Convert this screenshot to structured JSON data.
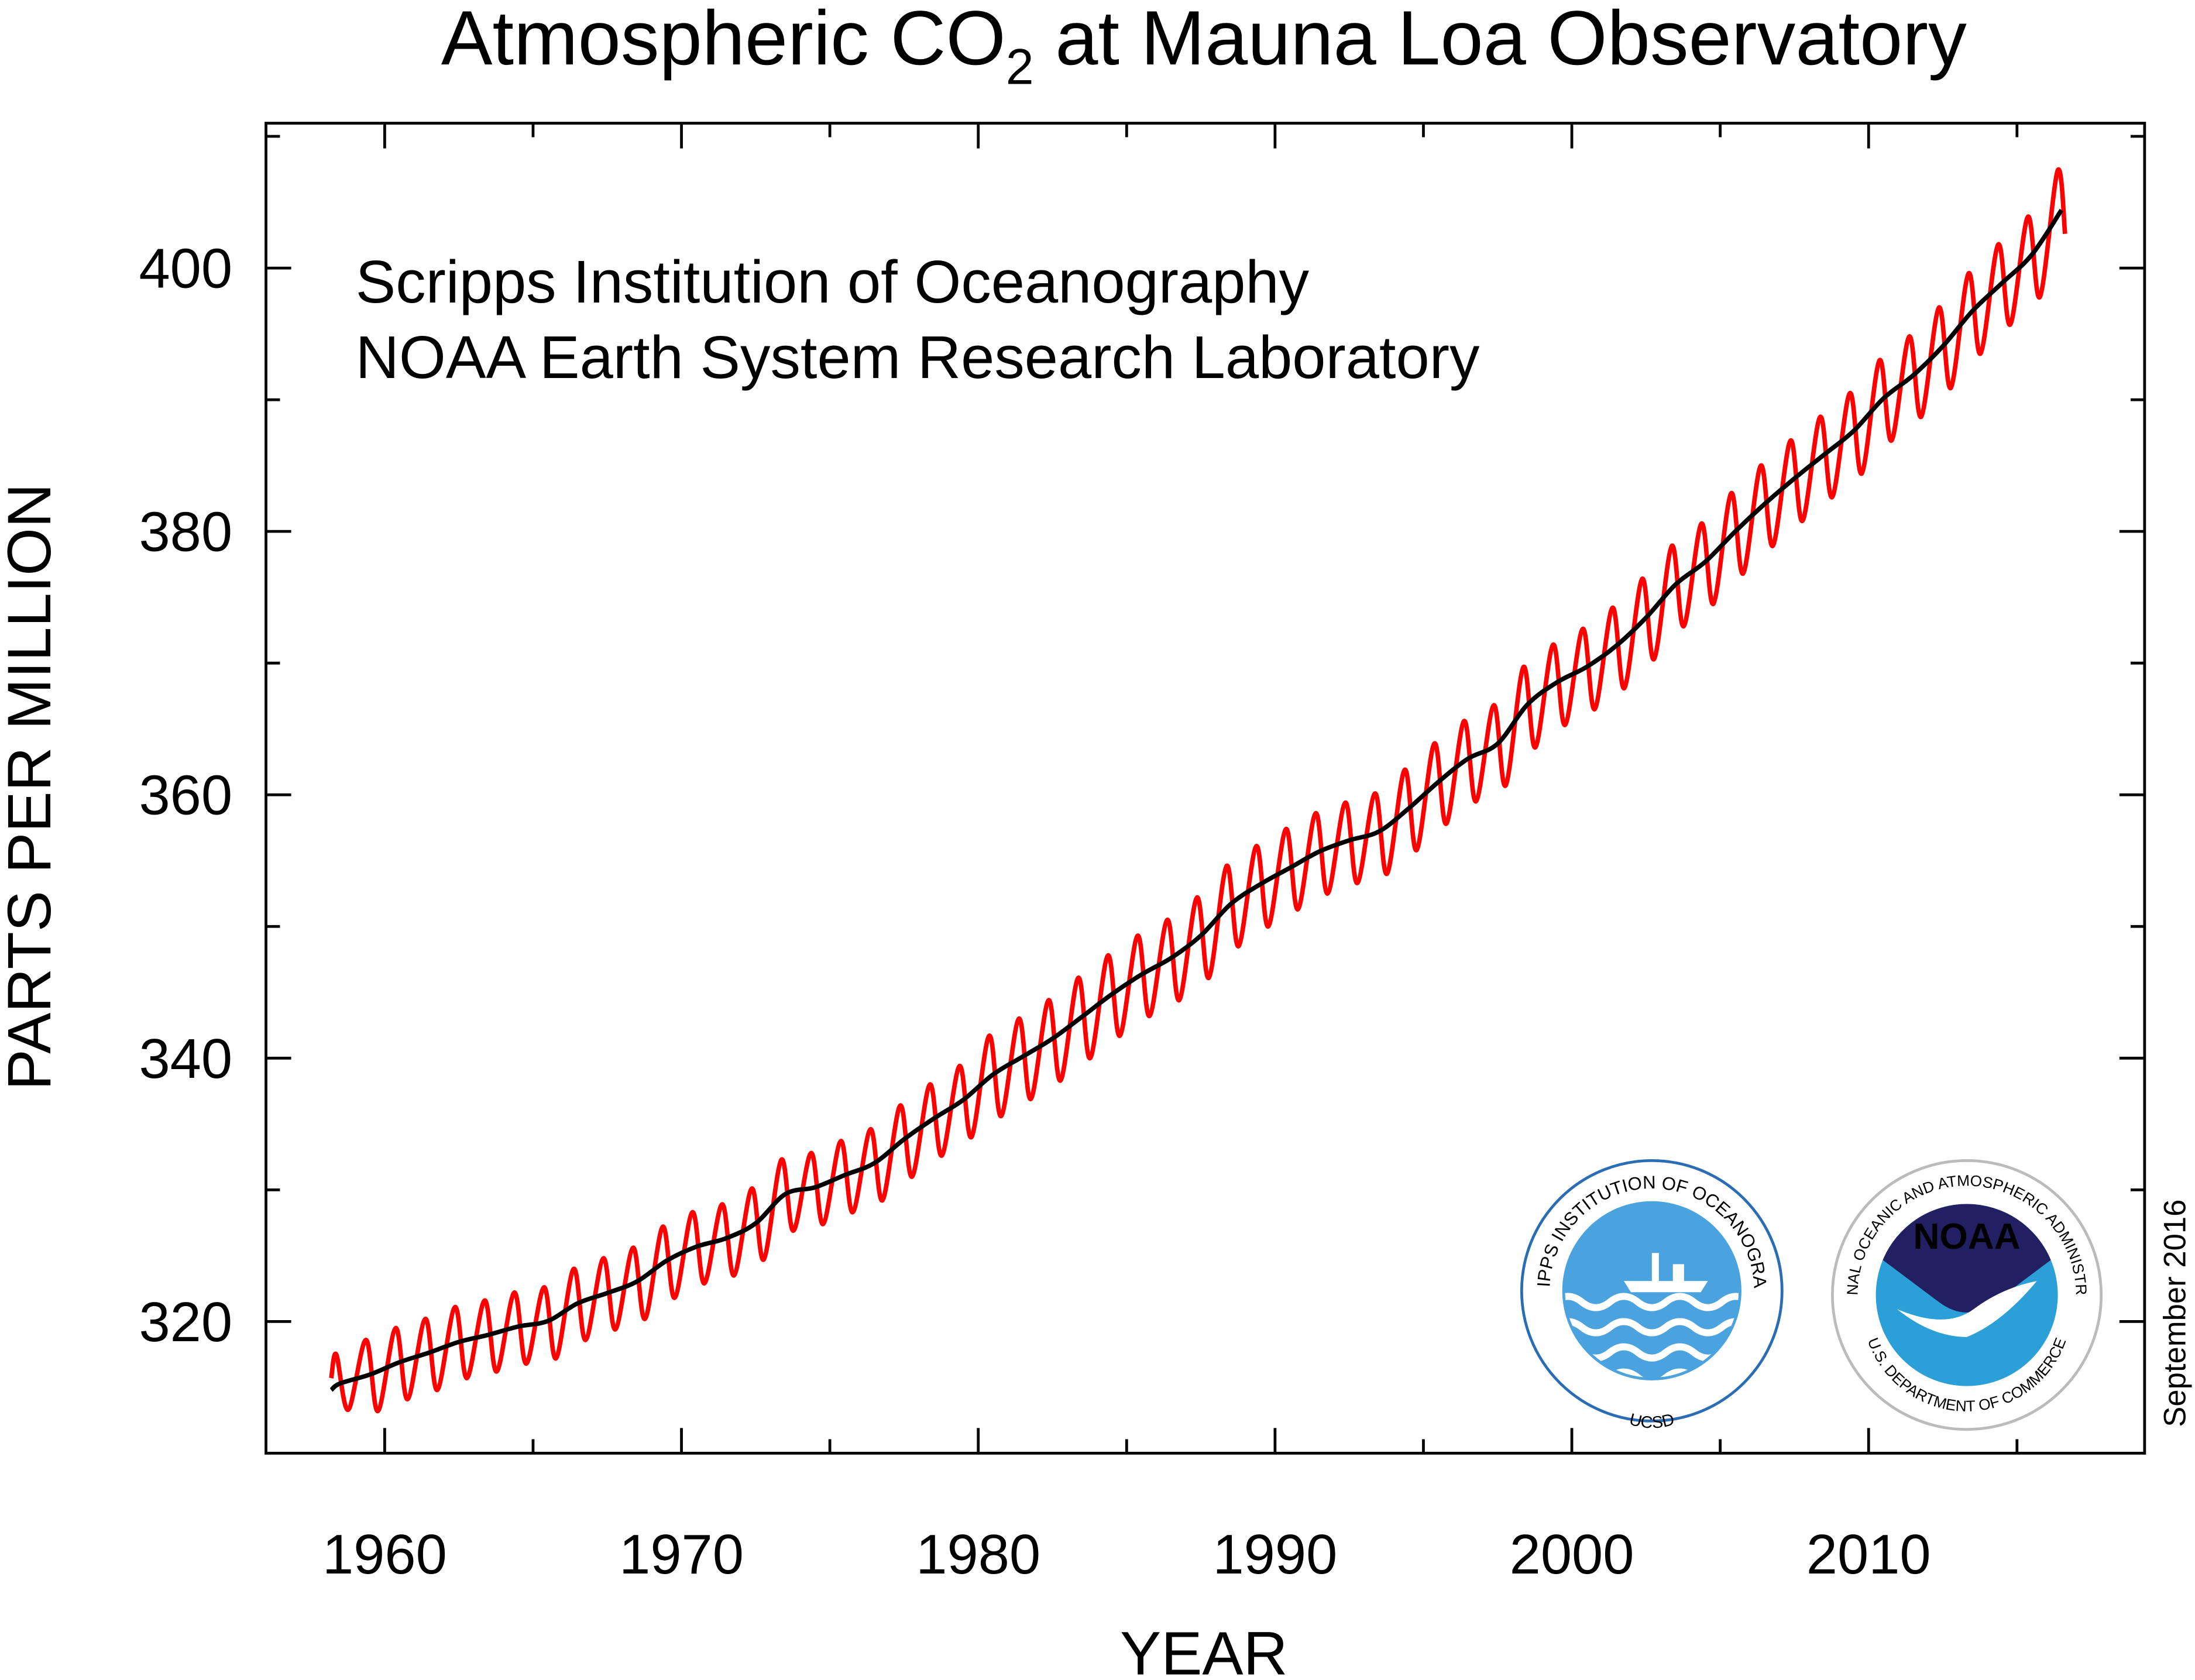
{
  "chart_data": {
    "type": "line",
    "title_parts": [
      "Atmospheric CO",
      "2",
      " at Mauna Loa Observatory"
    ],
    "annotations": [
      "Scripps Institution of Oceanography",
      "NOAA Earth System Research Laboratory"
    ],
    "date_note": "September 2016",
    "x_label": "YEAR",
    "y_label": "PARTS PER MILLION",
    "logos": {
      "scripps": {
        "ring": "SCRIPPS INSTITUTION OF OCEANOGRAPHY",
        "bottom": "UCSD"
      },
      "noaa": {
        "center": "NOAA",
        "ring": "NATIONAL OCEANIC AND ATMOSPHERIC ADMINISTRATION",
        "bottom": "U.S. DEPARTMENT OF COMMERCE"
      }
    },
    "xlim": [
      1956,
      2019.3
    ],
    "ylim": [
      310,
      411
    ],
    "xticks": [
      1960,
      1970,
      1980,
      1990,
      2000,
      2010
    ],
    "xminorticks": [
      1965,
      1975,
      1985,
      1995,
      2005,
      2015
    ],
    "yticks": [
      320,
      340,
      360,
      380,
      400
    ],
    "yminorticks": [
      330,
      350,
      370,
      390,
      410
    ],
    "series": [
      {
        "color": "#ff0000",
        "x": [
          1958.2,
          1958.37,
          1958.77,
          1959.37,
          1959.77,
          1960.37,
          1960.77,
          1961.37,
          1961.77,
          1962.37,
          1962.77,
          1963.37,
          1963.77,
          1964.37,
          1964.77,
          1965.37,
          1965.77,
          1966.37,
          1966.77,
          1967.37,
          1967.77,
          1968.37,
          1968.77,
          1969.37,
          1969.77,
          1970.37,
          1970.77,
          1971.37,
          1971.77,
          1972.37,
          1972.77,
          1973.37,
          1973.77,
          1974.37,
          1974.77,
          1975.37,
          1975.77,
          1976.37,
          1976.77,
          1977.37,
          1977.77,
          1978.37,
          1978.77,
          1979.37,
          1979.77,
          1980.37,
          1980.77,
          1981.37,
          1981.77,
          1982.37,
          1982.77,
          1983.37,
          1983.77,
          1984.37,
          1984.77,
          1985.37,
          1985.77,
          1986.37,
          1986.77,
          1987.37,
          1987.77,
          1988.37,
          1988.77,
          1989.37,
          1989.77,
          1990.37,
          1990.77,
          1991.37,
          1991.77,
          1992.37,
          1992.77,
          1993.37,
          1993.77,
          1994.37,
          1994.77,
          1995.37,
          1995.77,
          1996.37,
          1996.77,
          1997.37,
          1997.77,
          1998.37,
          1998.77,
          1999.37,
          1999.77,
          2000.37,
          2000.77,
          2001.37,
          2001.77,
          2002.37,
          2002.77,
          2003.37,
          2003.77,
          2004.37,
          2004.77,
          2005.37,
          2005.77,
          2006.37,
          2006.77,
          2007.37,
          2007.77,
          2008.37,
          2008.77,
          2009.37,
          2009.77,
          2010.37,
          2010.77,
          2011.37,
          2011.77,
          2012.37,
          2012.77,
          2013.37,
          2013.77,
          2014.37,
          2014.77,
          2015.37,
          2015.77,
          2016.37,
          2016.62
        ],
        "values": [
          315.7,
          317.5,
          313.3,
          318.6,
          313.2,
          319.5,
          314.1,
          320.2,
          314.8,
          321.1,
          315.7,
          321.6,
          316.2,
          322.2,
          316.8,
          322.6,
          317.2,
          324.0,
          318.6,
          324.8,
          319.4,
          325.6,
          320.2,
          327.2,
          321.8,
          328.3,
          322.9,
          328.9,
          323.5,
          330.1,
          324.7,
          332.3,
          326.9,
          332.8,
          327.4,
          333.7,
          328.3,
          334.6,
          329.2,
          336.4,
          331.0,
          338.0,
          332.6,
          339.4,
          334.0,
          341.7,
          335.6,
          343.0,
          336.9,
          344.4,
          338.3,
          346.1,
          340.0,
          347.8,
          341.7,
          349.3,
          343.2,
          350.5,
          344.4,
          352.2,
          346.1,
          354.6,
          348.5,
          356.1,
          350.0,
          357.4,
          351.3,
          358.6,
          352.5,
          359.4,
          353.3,
          360.1,
          354.0,
          361.9,
          355.8,
          363.9,
          357.8,
          365.6,
          359.5,
          366.8,
          360.7,
          369.7,
          363.6,
          371.4,
          365.3,
          372.6,
          366.5,
          374.2,
          368.1,
          376.4,
          370.3,
          378.9,
          372.8,
          380.6,
          374.5,
          382.9,
          376.8,
          385.0,
          378.9,
          386.9,
          380.8,
          388.7,
          382.6,
          390.5,
          384.4,
          393.0,
          386.9,
          394.8,
          388.7,
          397.0,
          390.9,
          399.6,
          393.5,
          401.8,
          395.7,
          403.9,
          397.8,
          407.4,
          402.6
        ]
      },
      {
        "color": "#000000",
        "x": [
          1958.2,
          1958.5,
          1959.5,
          1960.5,
          1961.5,
          1962.5,
          1963.5,
          1964.5,
          1965.5,
          1966.5,
          1967.5,
          1968.5,
          1969.5,
          1970.5,
          1971.5,
          1972.5,
          1973.5,
          1974.5,
          1975.5,
          1976.5,
          1977.5,
          1978.5,
          1979.5,
          1980.5,
          1981.5,
          1982.5,
          1983.5,
          1984.5,
          1985.5,
          1986.5,
          1987.5,
          1988.5,
          1989.5,
          1990.5,
          1991.5,
          1992.5,
          1993.5,
          1994.5,
          1995.5,
          1996.5,
          1997.5,
          1998.5,
          1999.5,
          2000.5,
          2001.5,
          2002.5,
          2003.5,
          2004.5,
          2005.5,
          2006.5,
          2007.5,
          2008.5,
          2009.5,
          2010.5,
          2011.5,
          2012.5,
          2013.5,
          2014.5,
          2015.5,
          2016.5
        ],
        "values": [
          314.8,
          315.3,
          315.97,
          316.91,
          317.64,
          318.45,
          318.99,
          319.62,
          320.04,
          321.38,
          322.16,
          323.04,
          324.62,
          325.68,
          326.32,
          327.46,
          329.68,
          330.19,
          331.12,
          332.03,
          333.84,
          335.41,
          336.84,
          338.76,
          340.12,
          341.48,
          343.15,
          344.85,
          346.35,
          347.61,
          349.31,
          351.69,
          353.2,
          354.45,
          355.7,
          356.54,
          357.21,
          358.96,
          360.97,
          362.74,
          363.88,
          366.84,
          368.54,
          369.71,
          371.32,
          373.45,
          375.98,
          377.7,
          379.98,
          382.09,
          384.02,
          385.83,
          387.64,
          390.1,
          391.85,
          394.06,
          396.74,
          398.87,
          401.01,
          404.41
        ]
      }
    ]
  }
}
